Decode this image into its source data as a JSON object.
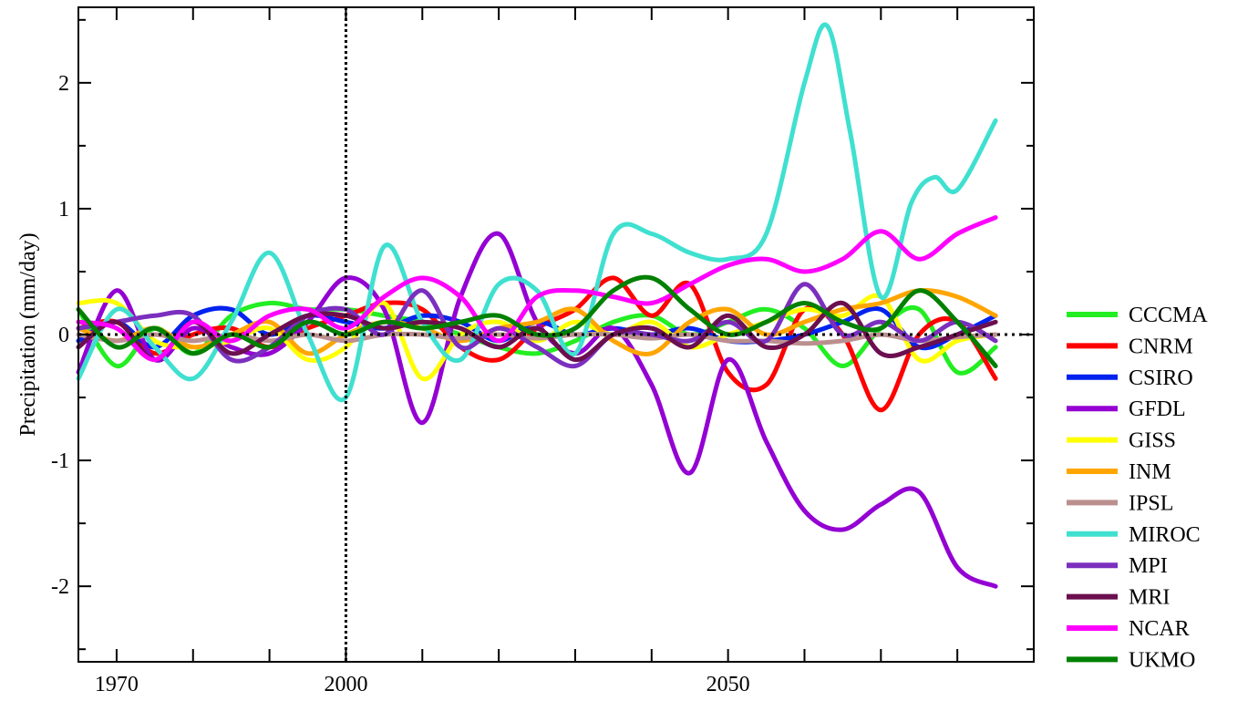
{
  "chart_data": {
    "type": "line",
    "title": "",
    "xlabel": "",
    "ylabel": "Precipitation (mm/day)",
    "xlim": [
      1965,
      2090
    ],
    "ylim": [
      -2.6,
      2.6
    ],
    "x_ticks": [
      1970,
      2000,
      2050
    ],
    "x_tick_labels": [
      "1970",
      "2000",
      "2050"
    ],
    "y_ticks": [
      -2,
      -1,
      0,
      1,
      2
    ],
    "y_tick_labels": [
      "-2",
      "-1",
      "0",
      "1",
      "2"
    ],
    "grid": false,
    "legend_position": "right",
    "reference_lines": {
      "vertical_dotted_at_x": 2000,
      "horizontal_dotted_at_y": 0
    },
    "series": [
      {
        "name": "CCCMA",
        "color": "#22ee22",
        "x": [
          1965,
          1970,
          1975,
          1980,
          1985,
          1990,
          1995,
          2000,
          2005,
          2010,
          2015,
          2020,
          2025,
          2030,
          2035,
          2040,
          2045,
          2050,
          2055,
          2060,
          2065,
          2070,
          2075,
          2080,
          2085
        ],
        "y": [
          0.2,
          -0.25,
          0.05,
          -0.15,
          0.15,
          0.25,
          0.2,
          0.2,
          0.15,
          0.1,
          0.0,
          -0.1,
          -0.15,
          -0.05,
          0.1,
          0.15,
          0.0,
          0.1,
          0.2,
          0.05,
          -0.25,
          0.05,
          0.2,
          -0.3,
          -0.1
        ]
      },
      {
        "name": "CNRM",
        "color": "#ff0000",
        "x": [
          1965,
          1970,
          1975,
          1980,
          1985,
          1990,
          1995,
          2000,
          2005,
          2010,
          2015,
          2020,
          2025,
          2030,
          2035,
          2040,
          2045,
          2050,
          2055,
          2060,
          2065,
          2070,
          2075,
          2080,
          2085
        ],
        "y": [
          0.05,
          0.1,
          -0.15,
          0.0,
          0.05,
          -0.1,
          0.05,
          0.15,
          0.25,
          0.2,
          -0.1,
          -0.2,
          0.05,
          0.2,
          0.45,
          0.15,
          0.4,
          -0.3,
          -0.4,
          0.2,
          0.0,
          -0.6,
          0.0,
          0.1,
          -0.35
        ]
      },
      {
        "name": "CSIRO",
        "color": "#0022ee",
        "x": [
          1965,
          1970,
          1975,
          1980,
          1985,
          1990,
          1995,
          2000,
          2005,
          2010,
          2015,
          2020,
          2025,
          2030,
          2035,
          2040,
          2045,
          2050,
          2055,
          2060,
          2065,
          2070,
          2075,
          2080,
          2085
        ],
        "y": [
          -0.05,
          0.1,
          -0.1,
          0.15,
          0.2,
          0.0,
          0.15,
          0.1,
          0.05,
          0.15,
          0.1,
          -0.05,
          0.1,
          0.0,
          0.05,
          0.0,
          0.05,
          -0.05,
          -0.05,
          0.0,
          0.1,
          0.2,
          -0.1,
          0.0,
          0.15
        ]
      },
      {
        "name": "GFDL",
        "color": "#9400d3",
        "x": [
          1965,
          1970,
          1975,
          1980,
          1985,
          1990,
          1995,
          2000,
          2005,
          2010,
          2015,
          2020,
          2025,
          2030,
          2035,
          2040,
          2045,
          2050,
          2055,
          2060,
          2065,
          2070,
          2075,
          2080,
          2085
        ],
        "y": [
          -0.3,
          0.35,
          -0.2,
          0.05,
          -0.1,
          -0.15,
          0.1,
          0.45,
          0.2,
          -0.7,
          0.3,
          0.8,
          0.1,
          -0.15,
          0.05,
          -0.4,
          -1.1,
          -0.2,
          -0.85,
          -1.4,
          -1.55,
          -1.35,
          -1.25,
          -1.85,
          -2.0
        ]
      },
      {
        "name": "GISS",
        "color": "#ffff00",
        "x": [
          1965,
          1970,
          1975,
          1980,
          1985,
          1990,
          1995,
          2000,
          2005,
          2010,
          2015,
          2020,
          2025,
          2030,
          2035,
          2040,
          2045,
          2050,
          2055,
          2060,
          2065,
          2070,
          2075,
          2080,
          2085
        ],
        "y": [
          0.25,
          0.25,
          -0.05,
          -0.1,
          -0.05,
          0.05,
          -0.2,
          -0.1,
          0.25,
          -0.35,
          0.0,
          0.1,
          -0.05,
          0.1,
          0.0,
          0.1,
          -0.1,
          0.0,
          0.1,
          0.2,
          0.15,
          0.3,
          -0.2,
          -0.05,
          0.0
        ]
      },
      {
        "name": "INM",
        "color": "#ffa500",
        "x": [
          1965,
          1970,
          1975,
          1980,
          1985,
          1990,
          1995,
          2000,
          2005,
          2010,
          2015,
          2020,
          2025,
          2030,
          2035,
          2040,
          2045,
          2050,
          2055,
          2060,
          2065,
          2070,
          2075,
          2080,
          2085
        ],
        "y": [
          0.05,
          -0.05,
          0.05,
          -0.1,
          0.0,
          0.1,
          -0.15,
          0.0,
          0.1,
          0.05,
          -0.05,
          0.05,
          0.1,
          0.2,
          -0.05,
          -0.15,
          0.1,
          0.2,
          0.0,
          0.1,
          0.2,
          0.25,
          0.35,
          0.3,
          0.15
        ]
      },
      {
        "name": "IPSL",
        "color": "#bc8f8f",
        "x": [
          1965,
          1970,
          1975,
          1980,
          1985,
          1990,
          1995,
          2000,
          2005,
          2010,
          2015,
          2020,
          2025,
          2030,
          2035,
          2040,
          2045,
          2050,
          2055,
          2060,
          2065,
          2070,
          2075,
          2080,
          2085
        ],
        "y": [
          0.0,
          -0.05,
          0.0,
          -0.05,
          0.0,
          -0.05,
          0.0,
          -0.05,
          0.0,
          0.0,
          -0.03,
          0.0,
          -0.03,
          0.0,
          0.0,
          -0.03,
          0.0,
          -0.05,
          -0.05,
          -0.07,
          -0.05,
          0.0,
          -0.05,
          -0.02,
          0.0
        ]
      },
      {
        "name": "MIROC",
        "color": "#40e0d0",
        "x": [
          1965,
          1970,
          1975,
          1980,
          1985,
          1990,
          1995,
          2000,
          2005,
          2010,
          2015,
          2020,
          2025,
          2030,
          2035,
          2040,
          2045,
          2050,
          2055,
          2060,
          2063,
          2066,
          2070,
          2074,
          2077,
          2080,
          2085
        ],
        "y": [
          -0.35,
          0.2,
          -0.1,
          -0.35,
          0.1,
          0.65,
          0.0,
          -0.5,
          0.7,
          0.1,
          -0.2,
          0.4,
          0.35,
          -0.15,
          0.8,
          0.8,
          0.65,
          0.6,
          0.8,
          2.0,
          2.45,
          1.6,
          0.3,
          1.05,
          1.25,
          1.15,
          1.7
        ]
      },
      {
        "name": "MPI",
        "color": "#7b2fbe",
        "x": [
          1965,
          1970,
          1975,
          1980,
          1985,
          1990,
          1995,
          2000,
          2005,
          2010,
          2015,
          2020,
          2025,
          2030,
          2035,
          2040,
          2045,
          2050,
          2055,
          2060,
          2065,
          2070,
          2075,
          2080,
          2085
        ],
        "y": [
          0.05,
          0.1,
          0.15,
          0.15,
          -0.2,
          -0.1,
          0.15,
          0.2,
          0.0,
          0.35,
          -0.1,
          0.05,
          -0.1,
          -0.25,
          0.0,
          0.0,
          -0.05,
          0.1,
          -0.05,
          0.4,
          0.0,
          0.1,
          -0.05,
          0.1,
          -0.05
        ]
      },
      {
        "name": "MRI",
        "color": "#6b0f4f",
        "x": [
          1965,
          1970,
          1975,
          1980,
          1985,
          1990,
          1995,
          2000,
          2005,
          2010,
          2015,
          2020,
          2025,
          2030,
          2035,
          2040,
          2045,
          2050,
          2055,
          2060,
          2065,
          2070,
          2075,
          2080,
          2085
        ],
        "y": [
          -0.1,
          0.1,
          -0.2,
          0.1,
          -0.15,
          0.0,
          0.15,
          0.15,
          0.05,
          0.1,
          0.05,
          -0.1,
          0.05,
          -0.2,
          0.0,
          0.05,
          -0.1,
          0.15,
          -0.1,
          0.0,
          0.25,
          -0.15,
          -0.1,
          0.0,
          0.1
        ]
      },
      {
        "name": "NCAR",
        "color": "#ff00ff",
        "x": [
          1965,
          1970,
          1975,
          1980,
          1985,
          1990,
          1995,
          2000,
          2005,
          2010,
          2015,
          2020,
          2025,
          2030,
          2035,
          2040,
          2045,
          2050,
          2055,
          2060,
          2065,
          2070,
          2075,
          2080,
          2085
        ],
        "y": [
          0.1,
          0.05,
          -0.2,
          0.1,
          -0.05,
          0.15,
          0.2,
          0.05,
          0.3,
          0.45,
          0.3,
          -0.05,
          0.3,
          0.35,
          0.3,
          0.25,
          0.4,
          0.55,
          0.6,
          0.5,
          0.6,
          0.82,
          0.6,
          0.8,
          0.93
        ]
      },
      {
        "name": "UKMO",
        "color": "#008000",
        "x": [
          1965,
          1970,
          1975,
          1980,
          1985,
          1990,
          1995,
          2000,
          2005,
          2010,
          2015,
          2020,
          2025,
          2030,
          2035,
          2040,
          2045,
          2050,
          2055,
          2060,
          2065,
          2070,
          2075,
          2080,
          2085
        ],
        "y": [
          0.2,
          -0.1,
          0.05,
          -0.15,
          0.0,
          -0.1,
          0.1,
          0.0,
          0.1,
          0.05,
          0.1,
          0.15,
          0.0,
          0.05,
          0.35,
          0.45,
          0.2,
          0.0,
          0.1,
          0.25,
          0.1,
          0.05,
          0.35,
          0.1,
          -0.25
        ]
      }
    ]
  }
}
